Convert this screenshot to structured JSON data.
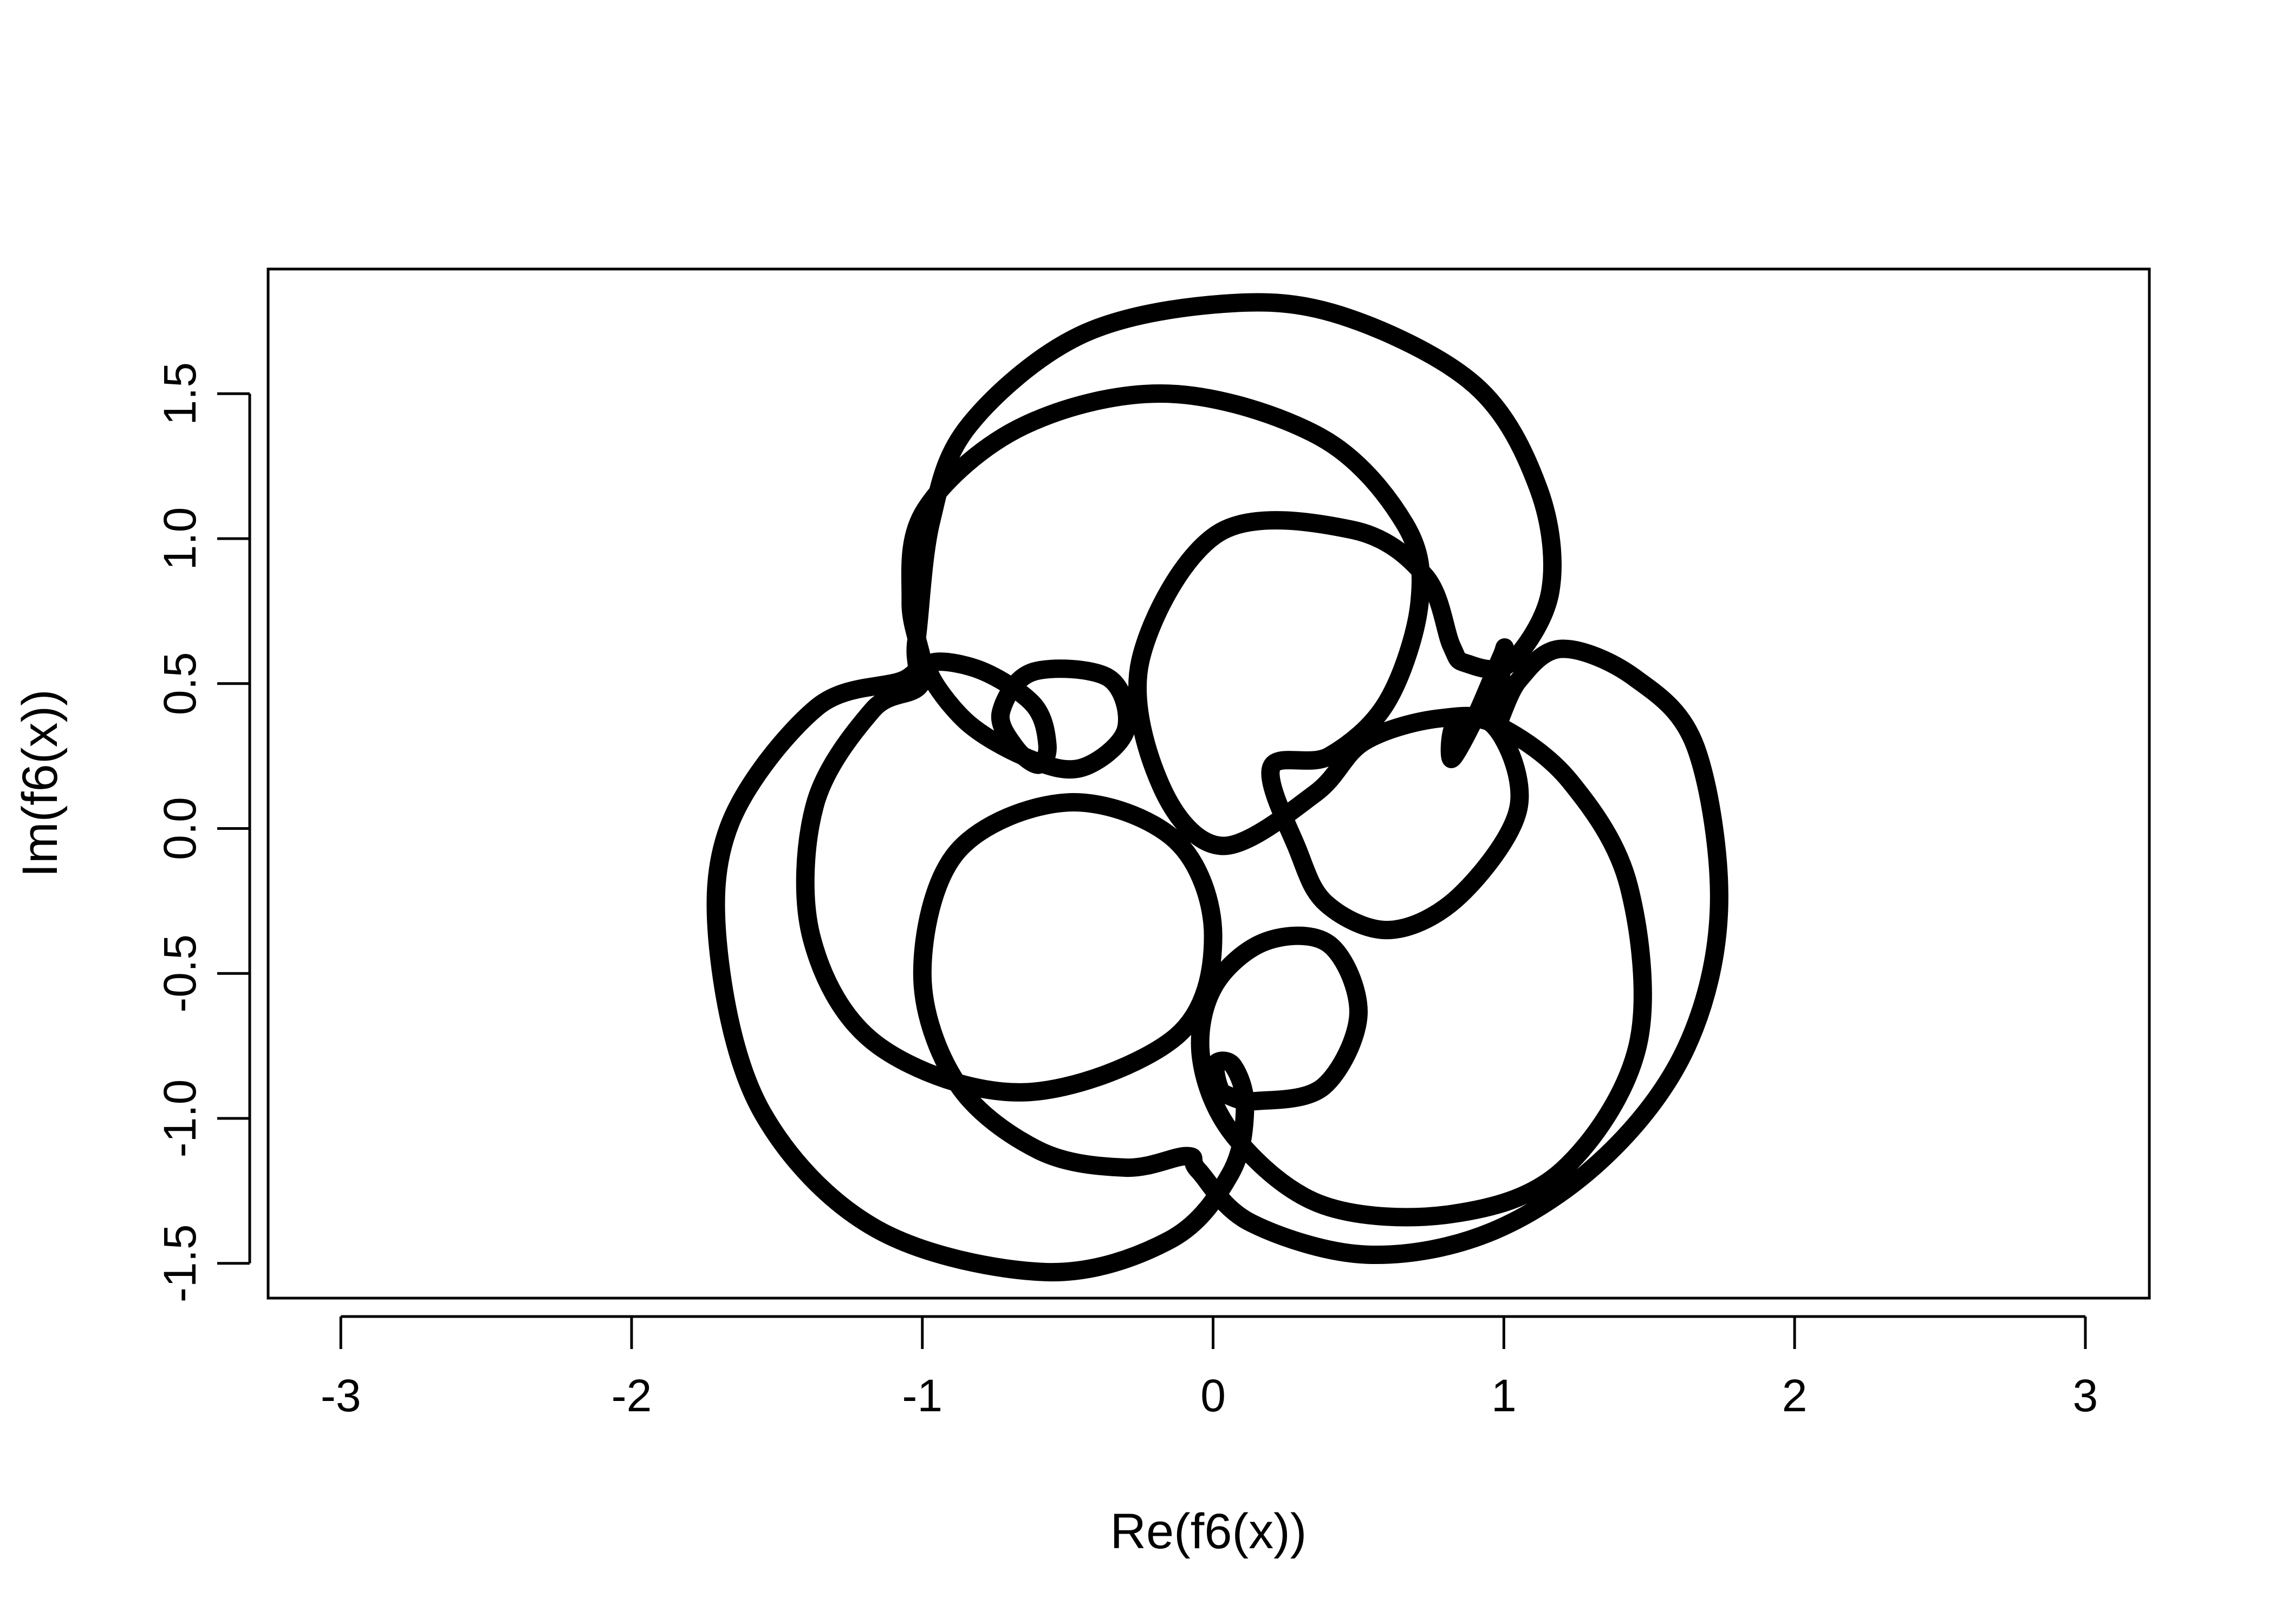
{
  "chart_data": {
    "type": "line",
    "title": "",
    "xlabel": "Re(f6(x))",
    "ylabel": "Im(f6(x))",
    "xlim": [
      -3.25,
      3.22
    ],
    "ylim": [
      -1.62,
      1.93
    ],
    "x_ticks": [
      -3,
      -2,
      -1,
      0,
      1,
      2,
      3
    ],
    "x_tick_labels": [
      "-3",
      "-2",
      "-1",
      "0",
      "1",
      "2",
      "3"
    ],
    "y_ticks": [
      -1.5,
      -1.0,
      -0.5,
      0.0,
      0.5,
      1.0,
      1.5
    ],
    "y_tick_labels": [
      "-1.5",
      "-1.0",
      "-0.5",
      "0.0",
      "0.5",
      "1.0",
      "1.5"
    ],
    "grid": false,
    "line_color": "#000000",
    "series": [
      {
        "points": [
          [
            1.0,
            0.6
          ],
          [
            0.97,
            0.35
          ],
          [
            1.05,
            0.51
          ],
          [
            1.2,
            0.62
          ],
          [
            1.45,
            0.52
          ],
          [
            1.66,
            0.28
          ],
          [
            1.74,
            -0.27
          ],
          [
            1.63,
            -0.75
          ],
          [
            1.35,
            -1.13
          ],
          [
            0.96,
            -1.39
          ],
          [
            0.53,
            -1.47
          ],
          [
            0.13,
            -1.36
          ],
          [
            -0.05,
            -1.18
          ],
          [
            -0.09,
            -1.13
          ],
          [
            -0.3,
            -1.17
          ],
          [
            -0.6,
            -1.11
          ],
          [
            -0.88,
            -0.88
          ],
          [
            -1.0,
            -0.5
          ],
          [
            -0.88,
            -0.08
          ],
          [
            -0.5,
            0.09
          ],
          [
            -0.13,
            -0.04
          ],
          [
            0.0,
            -0.37
          ],
          [
            -0.13,
            -0.72
          ],
          [
            -0.65,
            -0.91
          ],
          [
            -1.15,
            -0.75
          ],
          [
            -1.38,
            -0.38
          ],
          [
            -1.37,
            0.08
          ],
          [
            -1.17,
            0.41
          ],
          [
            -1.0,
            0.51
          ],
          [
            -1.04,
            0.78
          ],
          [
            -0.99,
            1.1
          ],
          [
            -0.65,
            1.39
          ],
          [
            -0.15,
            1.5
          ],
          [
            0.37,
            1.35
          ],
          [
            0.66,
            1.05
          ],
          [
            0.71,
            0.78
          ],
          [
            0.6,
            0.44
          ],
          [
            0.4,
            0.25
          ],
          [
            0.2,
            0.21
          ],
          [
            0.29,
            -0.07
          ],
          [
            0.39,
            -0.26
          ],
          [
            0.61,
            -0.35
          ],
          [
            0.85,
            -0.23
          ],
          [
            1.05,
            0.07
          ],
          [
            0.97,
            0.35
          ],
          [
            0.78,
            0.38
          ],
          [
            0.52,
            0.3
          ],
          [
            0.35,
            0.12
          ],
          [
            0.03,
            -0.06
          ],
          [
            -0.18,
            0.15
          ],
          [
            -0.25,
            0.58
          ],
          [
            0.02,
            1.02
          ],
          [
            0.48,
            1.03
          ],
          [
            0.73,
            0.87
          ],
          [
            0.82,
            0.63
          ],
          [
            0.87,
            0.57
          ],
          [
            1.02,
            0.57
          ],
          [
            1.16,
            0.82
          ],
          [
            1.12,
            1.17
          ],
          [
            0.9,
            1.53
          ],
          [
            0.44,
            1.77
          ],
          [
            0.03,
            1.81
          ],
          [
            -0.46,
            1.7
          ],
          [
            -0.84,
            1.39
          ],
          [
            -0.97,
            1.06
          ],
          [
            -1.02,
            0.65
          ],
          [
            -1.05,
            0.52
          ],
          [
            -1.36,
            0.42
          ],
          [
            -1.66,
            0.02
          ],
          [
            -1.7,
            -0.43
          ],
          [
            -1.55,
            -0.98
          ],
          [
            -1.16,
            -1.38
          ],
          [
            -0.58,
            -1.53
          ],
          [
            -0.15,
            -1.42
          ],
          [
            0.06,
            -1.19
          ],
          [
            0.11,
            -0.96
          ],
          [
            0.07,
            -0.82
          ],
          [
            0.01,
            -0.81
          ],
          [
            0.02,
            -0.89
          ],
          [
            0.05,
            -0.92
          ],
          [
            0.15,
            -0.94
          ],
          [
            0.38,
            -0.89
          ],
          [
            0.5,
            -0.64
          ],
          [
            0.4,
            -0.4
          ],
          [
            0.18,
            -0.39
          ],
          [
            0.0,
            -0.55
          ],
          [
            -0.04,
            -0.8
          ],
          [
            0.08,
            -1.07
          ],
          [
            0.38,
            -1.3
          ],
          [
            0.82,
            -1.33
          ],
          [
            1.2,
            -1.18
          ],
          [
            1.46,
            -0.75
          ],
          [
            1.43,
            -0.2
          ],
          [
            1.23,
            0.16
          ],
          [
            0.99,
            0.35
          ],
          [
            0.84,
            0.37
          ],
          [
            0.82,
            0.24
          ],
          [
            0.9,
            0.38
          ],
          [
            0.99,
            0.59
          ],
          [
            1.0,
            0.6
          ]
        ]
      },
      {
        "points": [
          [
            -0.68,
            0.28
          ],
          [
            -0.73,
            0.4
          ],
          [
            -0.62,
            0.54
          ],
          [
            -0.36,
            0.52
          ],
          [
            -0.3,
            0.34
          ],
          [
            -0.45,
            0.21
          ],
          [
            -0.63,
            0.24
          ],
          [
            -0.85,
            0.37
          ],
          [
            -0.98,
            0.56
          ],
          [
            -0.81,
            0.55
          ],
          [
            -0.62,
            0.43
          ],
          [
            -0.57,
            0.29
          ],
          [
            -0.6,
            0.22
          ],
          [
            -0.68,
            0.28
          ]
        ]
      }
    ]
  }
}
